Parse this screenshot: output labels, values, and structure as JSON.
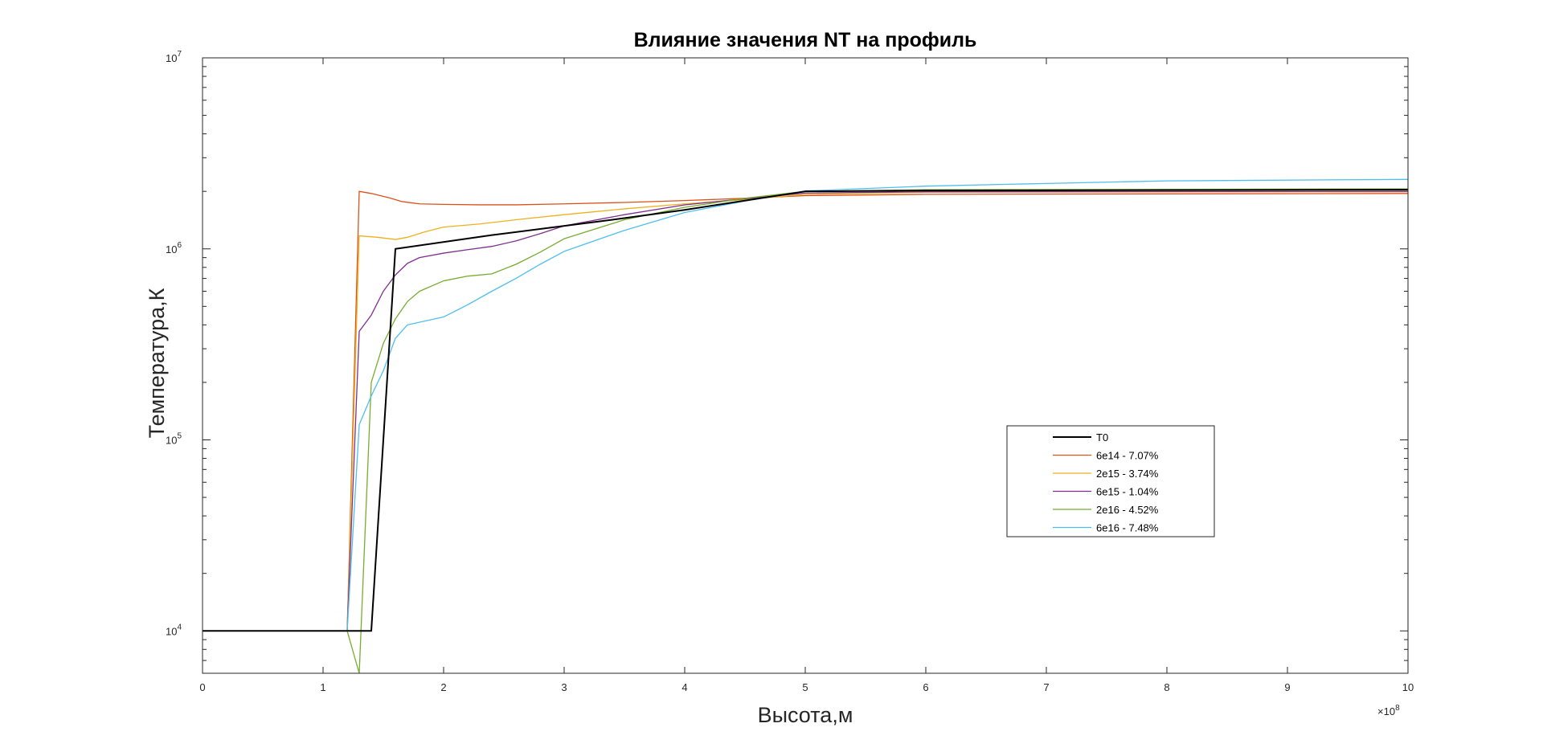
{
  "chart_data": {
    "type": "line",
    "title": "Влияние значения NT на профиль",
    "xlabel": "Высота,м",
    "ylabel": "Температура,К",
    "x_scale_note": "×10",
    "x_scale_exponent": "8",
    "xlim": [
      0,
      10
    ],
    "ylim": [
      6000,
      10000000
    ],
    "yscale": "log",
    "grid": false,
    "legend_location": "right-center",
    "xticks": [
      "0",
      "1",
      "2",
      "3",
      "4",
      "5",
      "6",
      "7",
      "8",
      "9",
      "10"
    ],
    "yticks": [
      {
        "value": 10000,
        "base": "10",
        "exp": "4"
      },
      {
        "value": 100000,
        "base": "10",
        "exp": "5"
      },
      {
        "value": 1000000,
        "base": "10",
        "exp": "6"
      },
      {
        "value": 10000000,
        "base": "10",
        "exp": "7"
      }
    ],
    "series": [
      {
        "name": "T0",
        "color": "#000000",
        "width": 2,
        "points": [
          [
            0,
            10000
          ],
          [
            1.4,
            10000
          ],
          [
            1.6,
            1000000
          ],
          [
            2.4,
            1180000
          ],
          [
            3.4,
            1420000
          ],
          [
            4.0,
            1600000
          ],
          [
            5.0,
            2000000
          ],
          [
            6.0,
            2020000
          ],
          [
            10.0,
            2040000
          ]
        ]
      },
      {
        "name": "6e14 - 7.07%",
        "color": "#D95319",
        "width": 1,
        "points": [
          [
            0,
            10000
          ],
          [
            1.2,
            10000
          ],
          [
            1.3,
            2000000
          ],
          [
            1.4,
            1950000
          ],
          [
            1.55,
            1850000
          ],
          [
            1.65,
            1770000
          ],
          [
            1.8,
            1720000
          ],
          [
            2.0,
            1710000
          ],
          [
            2.3,
            1700000
          ],
          [
            2.6,
            1700000
          ],
          [
            3.0,
            1720000
          ],
          [
            3.5,
            1750000
          ],
          [
            4.0,
            1790000
          ],
          [
            4.5,
            1840000
          ],
          [
            5.0,
            1900000
          ],
          [
            6.0,
            1930000
          ],
          [
            10.0,
            1950000
          ]
        ]
      },
      {
        "name": "2e15 - 3.74%",
        "color": "#EDB120",
        "width": 1,
        "points": [
          [
            0,
            10000
          ],
          [
            1.2,
            10000
          ],
          [
            1.3,
            1170000
          ],
          [
            1.45,
            1150000
          ],
          [
            1.6,
            1120000
          ],
          [
            1.7,
            1150000
          ],
          [
            1.85,
            1230000
          ],
          [
            2.0,
            1300000
          ],
          [
            2.3,
            1350000
          ],
          [
            2.6,
            1420000
          ],
          [
            3.0,
            1510000
          ],
          [
            3.5,
            1620000
          ],
          [
            4.0,
            1720000
          ],
          [
            4.5,
            1810000
          ],
          [
            5.0,
            1930000
          ],
          [
            6.0,
            1980000
          ],
          [
            10.0,
            1990000
          ]
        ]
      },
      {
        "name": "6e15 - 1.04%",
        "color": "#7E2F8E",
        "width": 1,
        "points": [
          [
            0,
            10000
          ],
          [
            1.2,
            10000
          ],
          [
            1.3,
            370000
          ],
          [
            1.4,
            450000
          ],
          [
            1.5,
            600000
          ],
          [
            1.6,
            730000
          ],
          [
            1.7,
            840000
          ],
          [
            1.8,
            900000
          ],
          [
            2.0,
            950000
          ],
          [
            2.2,
            990000
          ],
          [
            2.4,
            1030000
          ],
          [
            2.6,
            1100000
          ],
          [
            2.8,
            1200000
          ],
          [
            3.0,
            1320000
          ],
          [
            3.5,
            1510000
          ],
          [
            4.0,
            1700000
          ],
          [
            4.5,
            1830000
          ],
          [
            5.0,
            1960000
          ],
          [
            6.0,
            1990000
          ],
          [
            10.0,
            2000000
          ]
        ]
      },
      {
        "name": "2e16 - 4.52%",
        "color": "#77AC30",
        "width": 1,
        "points": [
          [
            0,
            10000
          ],
          [
            1.2,
            10000
          ],
          [
            1.3,
            6000
          ],
          [
            1.4,
            200000
          ],
          [
            1.5,
            320000
          ],
          [
            1.6,
            430000
          ],
          [
            1.7,
            530000
          ],
          [
            1.8,
            600000
          ],
          [
            2.0,
            680000
          ],
          [
            2.2,
            720000
          ],
          [
            2.4,
            740000
          ],
          [
            2.6,
            830000
          ],
          [
            2.8,
            960000
          ],
          [
            3.0,
            1130000
          ],
          [
            3.5,
            1420000
          ],
          [
            4.0,
            1650000
          ],
          [
            4.5,
            1840000
          ],
          [
            5.0,
            2000000
          ],
          [
            6.0,
            2040000
          ],
          [
            10.0,
            2060000
          ]
        ]
      },
      {
        "name": "6e16 - 7.48%",
        "color": "#4DBEEE",
        "width": 1,
        "points": [
          [
            0,
            10000
          ],
          [
            1.2,
            10000
          ],
          [
            1.3,
            120000
          ],
          [
            1.4,
            170000
          ],
          [
            1.5,
            230000
          ],
          [
            1.6,
            340000
          ],
          [
            1.7,
            400000
          ],
          [
            2.0,
            440000
          ],
          [
            2.2,
            510000
          ],
          [
            2.4,
            600000
          ],
          [
            2.6,
            700000
          ],
          [
            2.8,
            830000
          ],
          [
            3.0,
            970000
          ],
          [
            3.5,
            1250000
          ],
          [
            4.0,
            1550000
          ],
          [
            4.5,
            1780000
          ],
          [
            5.0,
            2010000
          ],
          [
            6.0,
            2130000
          ],
          [
            7.0,
            2200000
          ],
          [
            8.0,
            2270000
          ],
          [
            10.0,
            2310000
          ]
        ]
      }
    ]
  }
}
